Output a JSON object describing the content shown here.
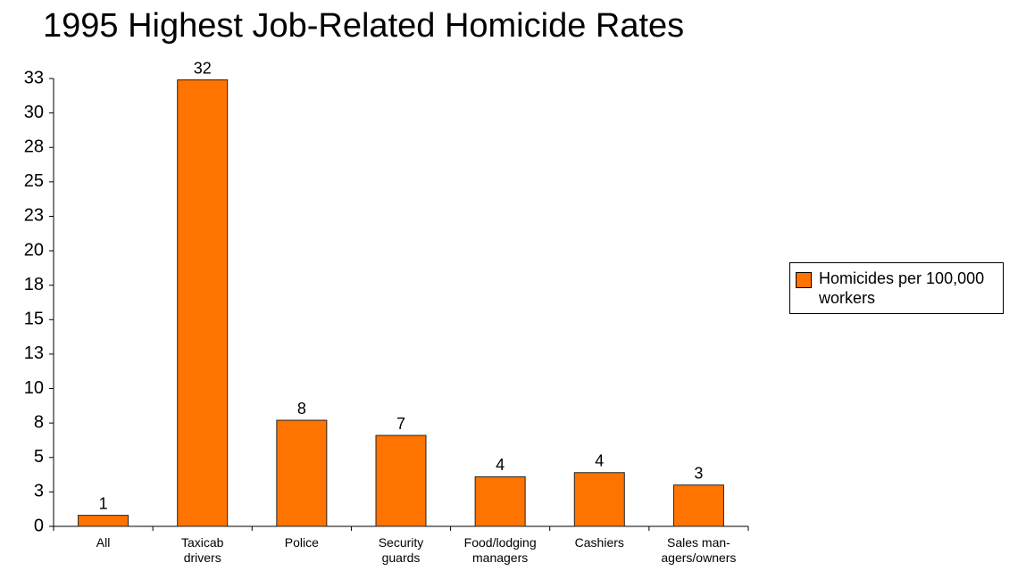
{
  "chart_data": {
    "type": "bar",
    "title": "1995 Highest Job-Related Homicide Rates",
    "categories": [
      "All",
      "Taxicab\ndrivers",
      "Police",
      "Security\nguards",
      "Food/lodging\nmanagers",
      "Cashiers",
      "Sales man-\nagers/owners"
    ],
    "series": [
      {
        "name": "Homicides per 100,000 workers",
        "color": "#ff7300",
        "values": [
          0.8,
          32.4,
          7.7,
          6.6,
          3.6,
          3.9,
          3.0
        ],
        "value_labels": [
          "1",
          "32",
          "8",
          "7",
          "4",
          "4",
          "3"
        ]
      }
    ],
    "ylim": [
      0,
      32.5
    ],
    "yticks": [
      0,
      {
        "value": 2.5,
        "label": "3"
      },
      5,
      {
        "value": 7.5,
        "label": "8"
      },
      10,
      {
        "value": 12.5,
        "label": "13"
      },
      15,
      {
        "value": 17.5,
        "label": "18"
      },
      20,
      {
        "value": 22.5,
        "label": "23"
      },
      25,
      {
        "value": 27.5,
        "label": "28"
      },
      30,
      {
        "value": 32.5,
        "label": "33"
      }
    ],
    "grid": false,
    "legend": "right"
  }
}
